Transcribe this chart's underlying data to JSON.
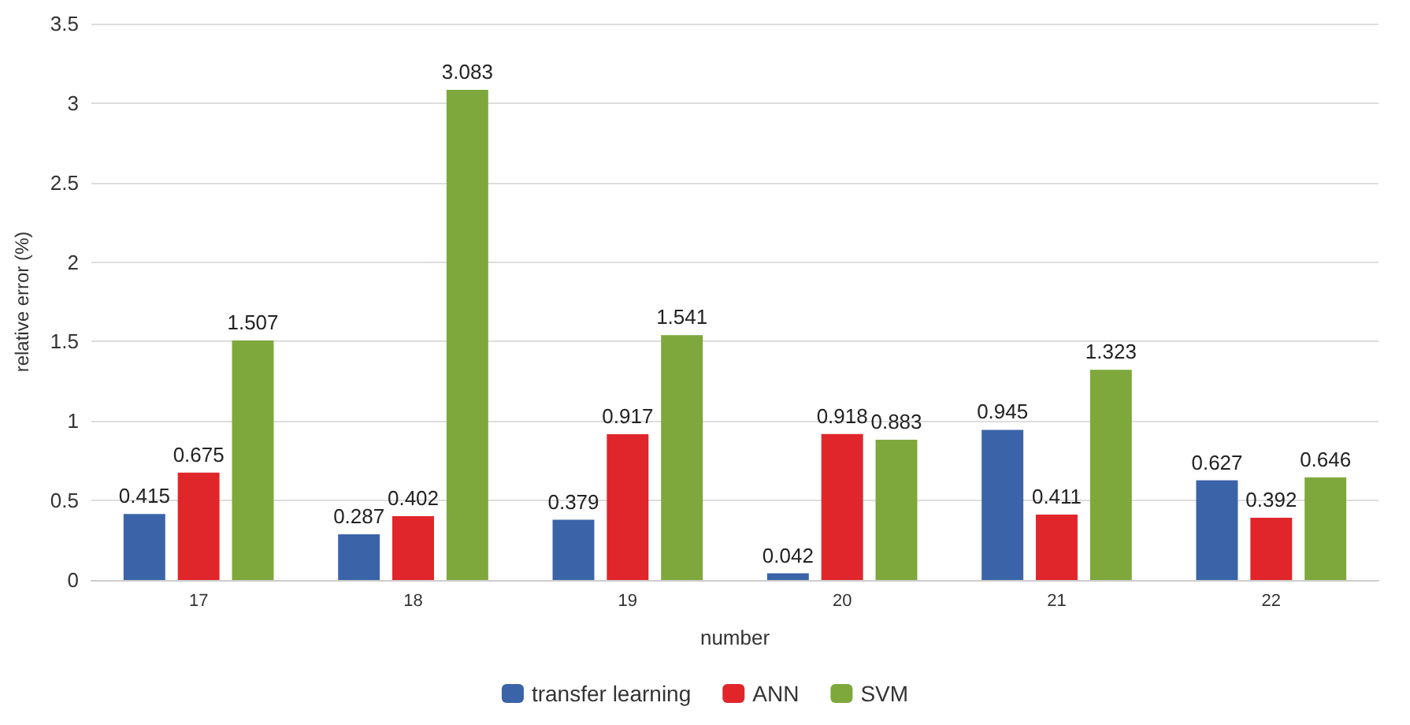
{
  "chart_data": {
    "type": "bar",
    "xlabel": "number",
    "ylabel": "relative error (%)",
    "categories": [
      "17",
      "18",
      "19",
      "20",
      "21",
      "22"
    ],
    "series": [
      {
        "name": "transfer learning",
        "color": "#3b64a8",
        "values": [
          0.415,
          0.287,
          0.379,
          0.042,
          0.945,
          0.627
        ]
      },
      {
        "name": "ANN",
        "color": "#e0262b",
        "values": [
          0.675,
          0.402,
          0.917,
          0.918,
          0.411,
          0.392
        ]
      },
      {
        "name": "SVM",
        "color": "#7ea83c",
        "values": [
          1.507,
          3.083,
          1.541,
          0.883,
          1.323,
          0.646
        ]
      }
    ],
    "ylim": [
      0,
      3.5
    ],
    "yticks": [
      0,
      0.5,
      1,
      1.5,
      2,
      2.5,
      3,
      3.5
    ],
    "grid": "y",
    "legend": "bottom",
    "data_labels": true
  }
}
